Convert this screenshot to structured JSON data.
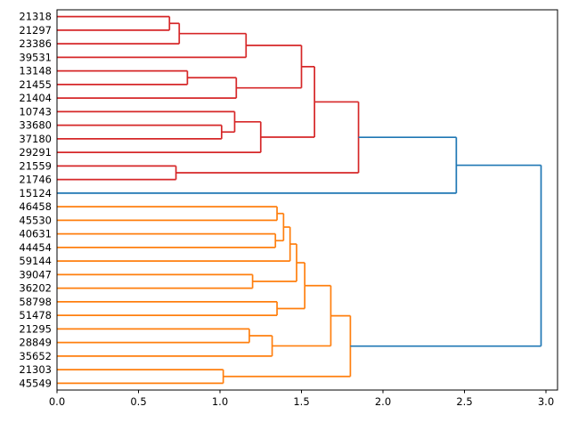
{
  "figure": {
    "kind": "dendrogram-plot",
    "background": "#ffffff",
    "border_color": "#000000"
  },
  "chart_data": {
    "type": "dendrogram",
    "orientation": "right",
    "title": "",
    "xlabel": "",
    "ylabel": "",
    "xlim": [
      0.0,
      3.07
    ],
    "x_ticks": [
      "0.0",
      "0.5",
      "1.0",
      "1.5",
      "2.0",
      "2.5",
      "3.0"
    ],
    "x_tick_values": [
      0.0,
      0.5,
      1.0,
      1.5,
      2.0,
      2.5,
      3.0
    ],
    "grid": false,
    "legend": "none",
    "colors": {
      "cluster1": "#d62728",
      "cluster2": "#ff7f0e",
      "link": "#1f77b4"
    },
    "leaves": [
      "21318",
      "21297",
      "23386",
      "39531",
      "13148",
      "21455",
      "21404",
      "10743",
      "33680",
      "37180",
      "29291",
      "21559",
      "21746",
      "15124",
      "46458",
      "45530",
      "40631",
      "44454",
      "59144",
      "39047",
      "36202",
      "58798",
      "51478",
      "21295",
      "28849",
      "35652",
      "21303",
      "45549"
    ],
    "merges": [
      {
        "id": "r1",
        "a": "21318",
        "b": "21297",
        "d": 0.69,
        "color": "cluster1"
      },
      {
        "id": "r2",
        "a": "r1",
        "b": "23386",
        "d": 0.75,
        "color": "cluster1"
      },
      {
        "id": "r3",
        "a": "r2",
        "b": "39531",
        "d": 1.16,
        "color": "cluster1"
      },
      {
        "id": "r4",
        "a": "13148",
        "b": "21455",
        "d": 0.8,
        "color": "cluster1"
      },
      {
        "id": "r5",
        "a": "r4",
        "b": "21404",
        "d": 1.1,
        "color": "cluster1"
      },
      {
        "id": "r6",
        "a": "r3",
        "b": "r5",
        "d": 1.5,
        "color": "cluster1"
      },
      {
        "id": "r7",
        "a": "33680",
        "b": "37180",
        "d": 1.01,
        "color": "cluster1"
      },
      {
        "id": "r8",
        "a": "10743",
        "b": "r7",
        "d": 1.09,
        "color": "cluster1"
      },
      {
        "id": "r9",
        "a": "r8",
        "b": "29291",
        "d": 1.25,
        "color": "cluster1"
      },
      {
        "id": "r10",
        "a": "r6",
        "b": "r9",
        "d": 1.58,
        "color": "cluster1"
      },
      {
        "id": "r11",
        "a": "21559",
        "b": "21746",
        "d": 0.73,
        "color": "cluster1"
      },
      {
        "id": "r12",
        "a": "r10",
        "b": "r11",
        "d": 1.85,
        "color": "cluster1"
      },
      {
        "id": "b1",
        "a": "r12",
        "b": "15124",
        "d": 2.45,
        "color": "link"
      },
      {
        "id": "o1",
        "a": "46458",
        "b": "45530",
        "d": 1.35,
        "color": "cluster2"
      },
      {
        "id": "o2",
        "a": "40631",
        "b": "44454",
        "d": 1.34,
        "color": "cluster2"
      },
      {
        "id": "o3",
        "a": "o1",
        "b": "o2",
        "d": 1.39,
        "color": "cluster2"
      },
      {
        "id": "o4",
        "a": "o3",
        "b": "59144",
        "d": 1.43,
        "color": "cluster2"
      },
      {
        "id": "o5",
        "a": "39047",
        "b": "36202",
        "d": 1.2,
        "color": "cluster2"
      },
      {
        "id": "o6",
        "a": "o4",
        "b": "o5",
        "d": 1.47,
        "color": "cluster2"
      },
      {
        "id": "o7",
        "a": "58798",
        "b": "51478",
        "d": 1.35,
        "color": "cluster2"
      },
      {
        "id": "o8",
        "a": "o6",
        "b": "o7",
        "d": 1.52,
        "color": "cluster2"
      },
      {
        "id": "o9",
        "a": "21295",
        "b": "28849",
        "d": 1.18,
        "color": "cluster2"
      },
      {
        "id": "o10",
        "a": "o9",
        "b": "35652",
        "d": 1.32,
        "color": "cluster2"
      },
      {
        "id": "o11",
        "a": "o8",
        "b": "o10",
        "d": 1.68,
        "color": "cluster2"
      },
      {
        "id": "o12",
        "a": "21303",
        "b": "45549",
        "d": 1.02,
        "color": "cluster2"
      },
      {
        "id": "o13",
        "a": "o11",
        "b": "o12",
        "d": 1.8,
        "color": "cluster2"
      },
      {
        "id": "b2",
        "a": "b1",
        "b": "o13",
        "d": 2.97,
        "color": "link"
      }
    ]
  }
}
